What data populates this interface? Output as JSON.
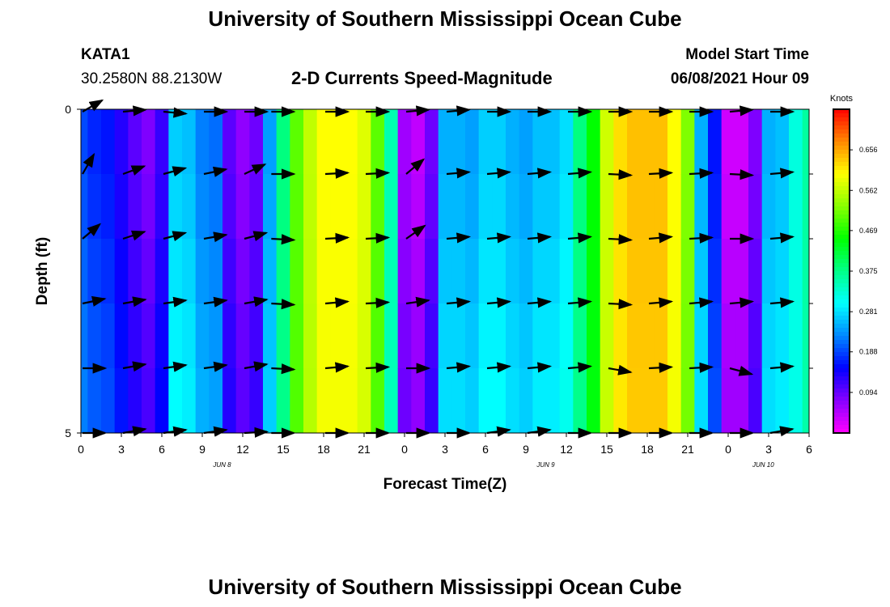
{
  "header": {
    "title": "University of Southern Mississippi Ocean Cube",
    "station": "KATA1",
    "coords": "30.2580N  88.2130W",
    "subtitle": "2-D Currents Speed-Magnitude",
    "model_start_label": "Model Start Time",
    "model_start_value": "06/08/2021 Hour 09"
  },
  "footer": {
    "title": "University of Southern Mississippi Ocean Cube"
  },
  "colors": {
    "scale": [
      "#ff00ff",
      "#8800ff",
      "#0000ff",
      "#0088ff",
      "#00ffff",
      "#00ff88",
      "#00ff00",
      "#88ff00",
      "#ffff00",
      "#ff8800",
      "#ff0000"
    ]
  },
  "chart_data": {
    "type": "heatmap",
    "ylabel": "Depth (ft)",
    "xlabel": "Forecast Time(Z)",
    "y_ticks": [
      "0",
      "5"
    ],
    "ylim": [
      0,
      5
    ],
    "x_ticks": [
      "0",
      "3",
      "6",
      "9",
      "12",
      "15",
      "18",
      "21",
      "0",
      "3",
      "6",
      "9",
      "12",
      "15",
      "18",
      "21",
      "0",
      "3",
      "6"
    ],
    "date_labels": [
      {
        "label": "JUN 8",
        "at_hour": 11
      },
      {
        "label": "JUN 9",
        "at_hour": 35
      },
      {
        "label": "JUN 10",
        "at_hour": 51
      }
    ],
    "xlim_hours": [
      0,
      54
    ],
    "depth_levels": [
      0.5,
      1.5,
      2.5,
      3.5,
      4.5
    ],
    "times": [
      0,
      1,
      2,
      3,
      4,
      5,
      6,
      7,
      8,
      9,
      10,
      11,
      12,
      13,
      14,
      15,
      16,
      17,
      18,
      19,
      20,
      21,
      22,
      23,
      24,
      25,
      26,
      27,
      28,
      29,
      30,
      31,
      32,
      33,
      34,
      35,
      36,
      37,
      38,
      39,
      40,
      41,
      42,
      43,
      44,
      45,
      46,
      47,
      48,
      49,
      50,
      51,
      52,
      53,
      54
    ],
    "speed_by_time": [
      0.19,
      0.17,
      0.16,
      0.13,
      0.1,
      0.08,
      0.12,
      0.27,
      0.26,
      0.22,
      0.21,
      0.1,
      0.07,
      0.09,
      0.24,
      0.38,
      0.5,
      0.56,
      0.6,
      0.6,
      0.6,
      0.58,
      0.5,
      0.35,
      0.06,
      0.04,
      0.09,
      0.25,
      0.25,
      0.24,
      0.27,
      0.27,
      0.25,
      0.24,
      0.26,
      0.26,
      0.28,
      0.38,
      0.45,
      0.57,
      0.62,
      0.64,
      0.64,
      0.64,
      0.6,
      0.52,
      0.25,
      0.16,
      0.03,
      0.03,
      0.08,
      0.25,
      0.26,
      0.32,
      0.36
    ],
    "depth_adjust": [
      0.0,
      0.02,
      0.05,
      0.08,
      0.1
    ],
    "colorbar": {
      "unit": "Knots",
      "min": 0,
      "max": 0.75,
      "tick_values": [
        0.094,
        0.188,
        0.281,
        0.375,
        0.469,
        0.562,
        0.656
      ],
      "tick_labels": [
        "0.094",
        "0.188",
        "0.281",
        "0.375",
        "0.469",
        "0.562",
        "0.656"
      ]
    },
    "vector_times": [
      0,
      3,
      6,
      9,
      12,
      14,
      18,
      21,
      24,
      27,
      30,
      33,
      36,
      39,
      42,
      45,
      48,
      51
    ],
    "vector_depths": [
      0.0,
      1.0,
      2.0,
      3.0,
      4.0,
      5.0
    ],
    "vector_angles_deg": [
      [
        30,
        5,
        -5,
        0,
        0,
        0,
        0,
        0,
        5,
        5,
        0,
        0,
        0,
        0,
        0,
        0,
        5,
        0
      ],
      [
        60,
        20,
        15,
        12,
        25,
        0,
        3,
        3,
        40,
        5,
        5,
        5,
        5,
        -3,
        3,
        3,
        -3,
        5
      ],
      [
        40,
        18,
        15,
        10,
        15,
        -3,
        3,
        3,
        35,
        5,
        5,
        5,
        5,
        -3,
        5,
        3,
        0,
        5
      ],
      [
        12,
        10,
        8,
        8,
        10,
        -3,
        5,
        3,
        8,
        5,
        5,
        5,
        5,
        -3,
        5,
        5,
        5,
        5
      ],
      [
        0,
        10,
        8,
        8,
        10,
        -3,
        5,
        3,
        0,
        5,
        5,
        5,
        5,
        -10,
        3,
        3,
        -15,
        5
      ],
      [
        0,
        10,
        8,
        8,
        3,
        0,
        0,
        0,
        0,
        0,
        8,
        8,
        0,
        0,
        0,
        0,
        0,
        10
      ]
    ]
  }
}
